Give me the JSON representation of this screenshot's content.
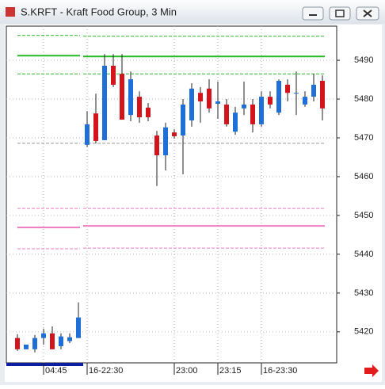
{
  "chart_data": {
    "type": "candlestick",
    "title": "S.KRFT - Kraft Food Group, 3 Min",
    "categories": [
      null,
      null,
      null,
      "04:45",
      null,
      null,
      null,
      null,
      "16-22:30",
      null,
      null,
      null,
      null,
      null,
      null,
      null,
      null,
      null,
      "23:00",
      null,
      null,
      null,
      null,
      "23:15",
      null,
      null,
      null,
      null,
      "16-23:30",
      null,
      null,
      null,
      null,
      null,
      null,
      null
    ],
    "open": [
      5418.4,
      5415.5,
      5415.5,
      5418.4,
      5419.6,
      5416.3,
      5417.6,
      5418.4,
      5468.2,
      5476.3,
      5469.4,
      5488.6,
      5486.5,
      5475.9,
      5480.6,
      5477.8,
      5470.6,
      5465.5,
      5471.4,
      5470.6,
      5474.5,
      5481.6,
      5482.7,
      5478.8,
      5478.6,
      5471.6,
      5477.6,
      5478.6,
      5473.5,
      5480.6,
      5476.5,
      5483.7,
      5481.6,
      5478.6,
      5480.6,
      5484.7
    ],
    "high": [
      5419.4,
      5416.7,
      5419.2,
      5420.8,
      5421.4,
      5419.6,
      5419.6,
      5427.6,
      5476.9,
      5481.4,
      5491.6,
      5491.6,
      5491.6,
      5487.1,
      5482.0,
      5479.0,
      5471.8,
      5473.9,
      5472.2,
      5480.0,
      5484.1,
      5483.1,
      5485.1,
      5484.5,
      5480.0,
      5478.0,
      5484.5,
      5480.0,
      5482.0,
      5482.0,
      5485.1,
      5485.1,
      5487.1,
      5482.0,
      5486.5,
      5486.1
    ],
    "low": [
      5415.1,
      5415.5,
      5414.7,
      5416.7,
      5415.5,
      5415.5,
      5417.1,
      5418.4,
      5467.6,
      5468.6,
      5469.4,
      5483.1,
      5474.7,
      5474.3,
      5473.9,
      5474.3,
      5457.6,
      5461.6,
      5469.8,
      5460.6,
      5472.9,
      5473.9,
      5476.5,
      5474.9,
      5472.9,
      5470.8,
      5475.9,
      5471.4,
      5472.9,
      5477.6,
      5475.9,
      5479.4,
      5475.9,
      5478.0,
      5479.4,
      5474.5
    ],
    "close": [
      5415.5,
      5416.7,
      5418.4,
      5419.6,
      5415.5,
      5418.8,
      5418.6,
      5423.7,
      5473.5,
      5469.2,
      5488.6,
      5483.7,
      5474.7,
      5485.1,
      5475.3,
      5475.3,
      5465.5,
      5472.7,
      5470.4,
      5478.6,
      5482.7,
      5479.4,
      5477.6,
      5479.4,
      5473.5,
      5476.5,
      5478.6,
      5473.5,
      5480.6,
      5478.6,
      5484.7,
      5481.6,
      5481.6,
      5480.6,
      5483.7,
      5477.6
    ],
    "up_color": "#1f6fd8",
    "down_color": "#d3141c",
    "levels": [
      {
        "color": "#22bb22",
        "style": "dashed",
        "values": [
          5496.4,
          5496.2
        ]
      },
      {
        "color": "#22bb22",
        "style": "solid",
        "values": [
          5491.2,
          5491.0
        ]
      },
      {
        "color": "#22bb22",
        "style": "dashed",
        "values": [
          5486.5,
          5486.5
        ]
      },
      {
        "color": "#999999",
        "style": "dashed",
        "values": [
          5468.6,
          5468.6
        ]
      },
      {
        "color": "#f07ac0",
        "style": "dashed",
        "values": [
          5451.8,
          5451.8
        ]
      },
      {
        "color": "#f07ac0",
        "style": "solid",
        "values": [
          5446.9,
          5447.3
        ]
      },
      {
        "color": "#f07ac0",
        "style": "dashed",
        "values": [
          5441.4,
          5441.6
        ]
      }
    ],
    "ylim": [
      5412.0,
      5498.8
    ],
    "yticks": [
      5420,
      5430,
      5440,
      5450,
      5460,
      5470,
      5480,
      5490
    ],
    "grid": true
  }
}
